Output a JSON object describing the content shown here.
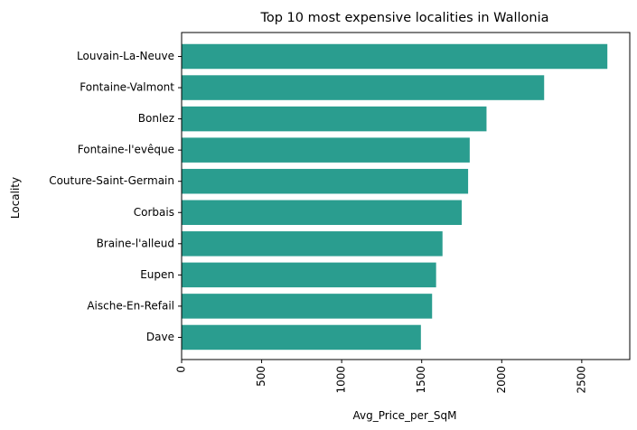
{
  "colors": {
    "bar": "#2a9d8f",
    "axis": "#000000",
    "background": "#ffffff"
  },
  "chart_data": {
    "type": "bar",
    "orientation": "horizontal",
    "title": "Top 10 most expensive localities in Wallonia",
    "xlabel": "Avg_Price_per_SqM",
    "ylabel": "Locality",
    "categories": [
      "Louvain-La-Neuve",
      "Fontaine-Valmont",
      "Bonlez",
      "Fontaine-l'evêque",
      "Couture-Saint-Germain",
      "Corbais",
      "Braine-l'alleud",
      "Eupen",
      "Aische-En-Refail",
      "Dave"
    ],
    "values": [
      2660,
      2265,
      1905,
      1800,
      1790,
      1750,
      1630,
      1590,
      1565,
      1495
    ],
    "xlim": [
      0,
      2800
    ],
    "xticks": [
      0,
      500,
      1000,
      1500,
      2000,
      2500
    ],
    "xtick_labels": [
      "0",
      "500",
      "1000",
      "1500",
      "2000",
      "2500"
    ],
    "xtick_rotation": "vertical",
    "grid": false,
    "legend": "none"
  }
}
